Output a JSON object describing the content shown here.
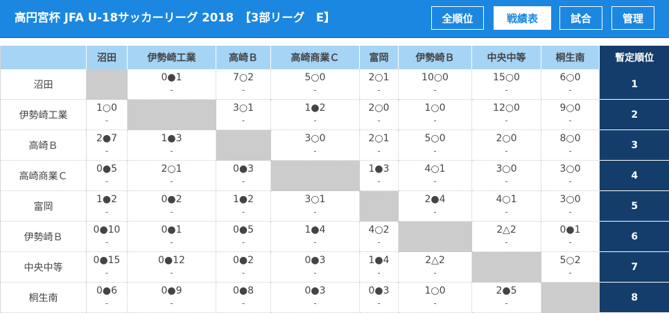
{
  "header": {
    "title": "高円宮杯 JFA U-18サッカーリーグ 2018　【3部リーグ　E】",
    "buttons": [
      {
        "label": "全順位",
        "active": false
      },
      {
        "label": "戦績表",
        "active": true
      },
      {
        "label": "試合",
        "active": false
      },
      {
        "label": "管理",
        "active": false
      }
    ]
  },
  "table": {
    "column_headers": [
      "沼田",
      "伊勢崎工業",
      "高崎Ｂ",
      "高崎商業Ｃ",
      "富岡",
      "伊勢崎Ｂ",
      "中央中等",
      "桐生南"
    ],
    "rank_header": "暫定順位",
    "rows": [
      {
        "team": "沼田",
        "rank": "1",
        "scores": [
          "",
          "0●1",
          "7○2",
          "5○0",
          "2○1",
          "10○0",
          "15○0",
          "6○0"
        ]
      },
      {
        "team": "伊勢崎工業",
        "rank": "2",
        "scores": [
          "1○0",
          "",
          "3○1",
          "1●2",
          "2○0",
          "1○0",
          "12○0",
          "9○0"
        ]
      },
      {
        "team": "高崎Ｂ",
        "rank": "3",
        "scores": [
          "2●7",
          "1●3",
          "",
          "3○0",
          "2○1",
          "5○0",
          "2○0",
          "8○0"
        ]
      },
      {
        "team": "高崎商業Ｃ",
        "rank": "4",
        "scores": [
          "0●5",
          "2○1",
          "0●3",
          "",
          "1●3",
          "4○1",
          "3○0",
          "3○0"
        ]
      },
      {
        "team": "富岡",
        "rank": "5",
        "scores": [
          "1●2",
          "0●2",
          "1●2",
          "3○1",
          "",
          "2●4",
          "4○1",
          "3○0"
        ]
      },
      {
        "team": "伊勢崎Ｂ",
        "rank": "6",
        "scores": [
          "0●10",
          "0●1",
          "0●5",
          "1●4",
          "4○2",
          "",
          "2△2",
          "0●1"
        ]
      },
      {
        "team": "中央中等",
        "rank": "7",
        "scores": [
          "0●15",
          "0●12",
          "0●2",
          "0●3",
          "1●4",
          "2△2",
          "",
          "5○2"
        ]
      },
      {
        "team": "桐生南",
        "rank": "8",
        "scores": [
          "0●6",
          "0●9",
          "0●8",
          "0●3",
          "0●3",
          "1○0",
          "2●5",
          ""
        ]
      }
    ],
    "sub_marker": "-"
  }
}
